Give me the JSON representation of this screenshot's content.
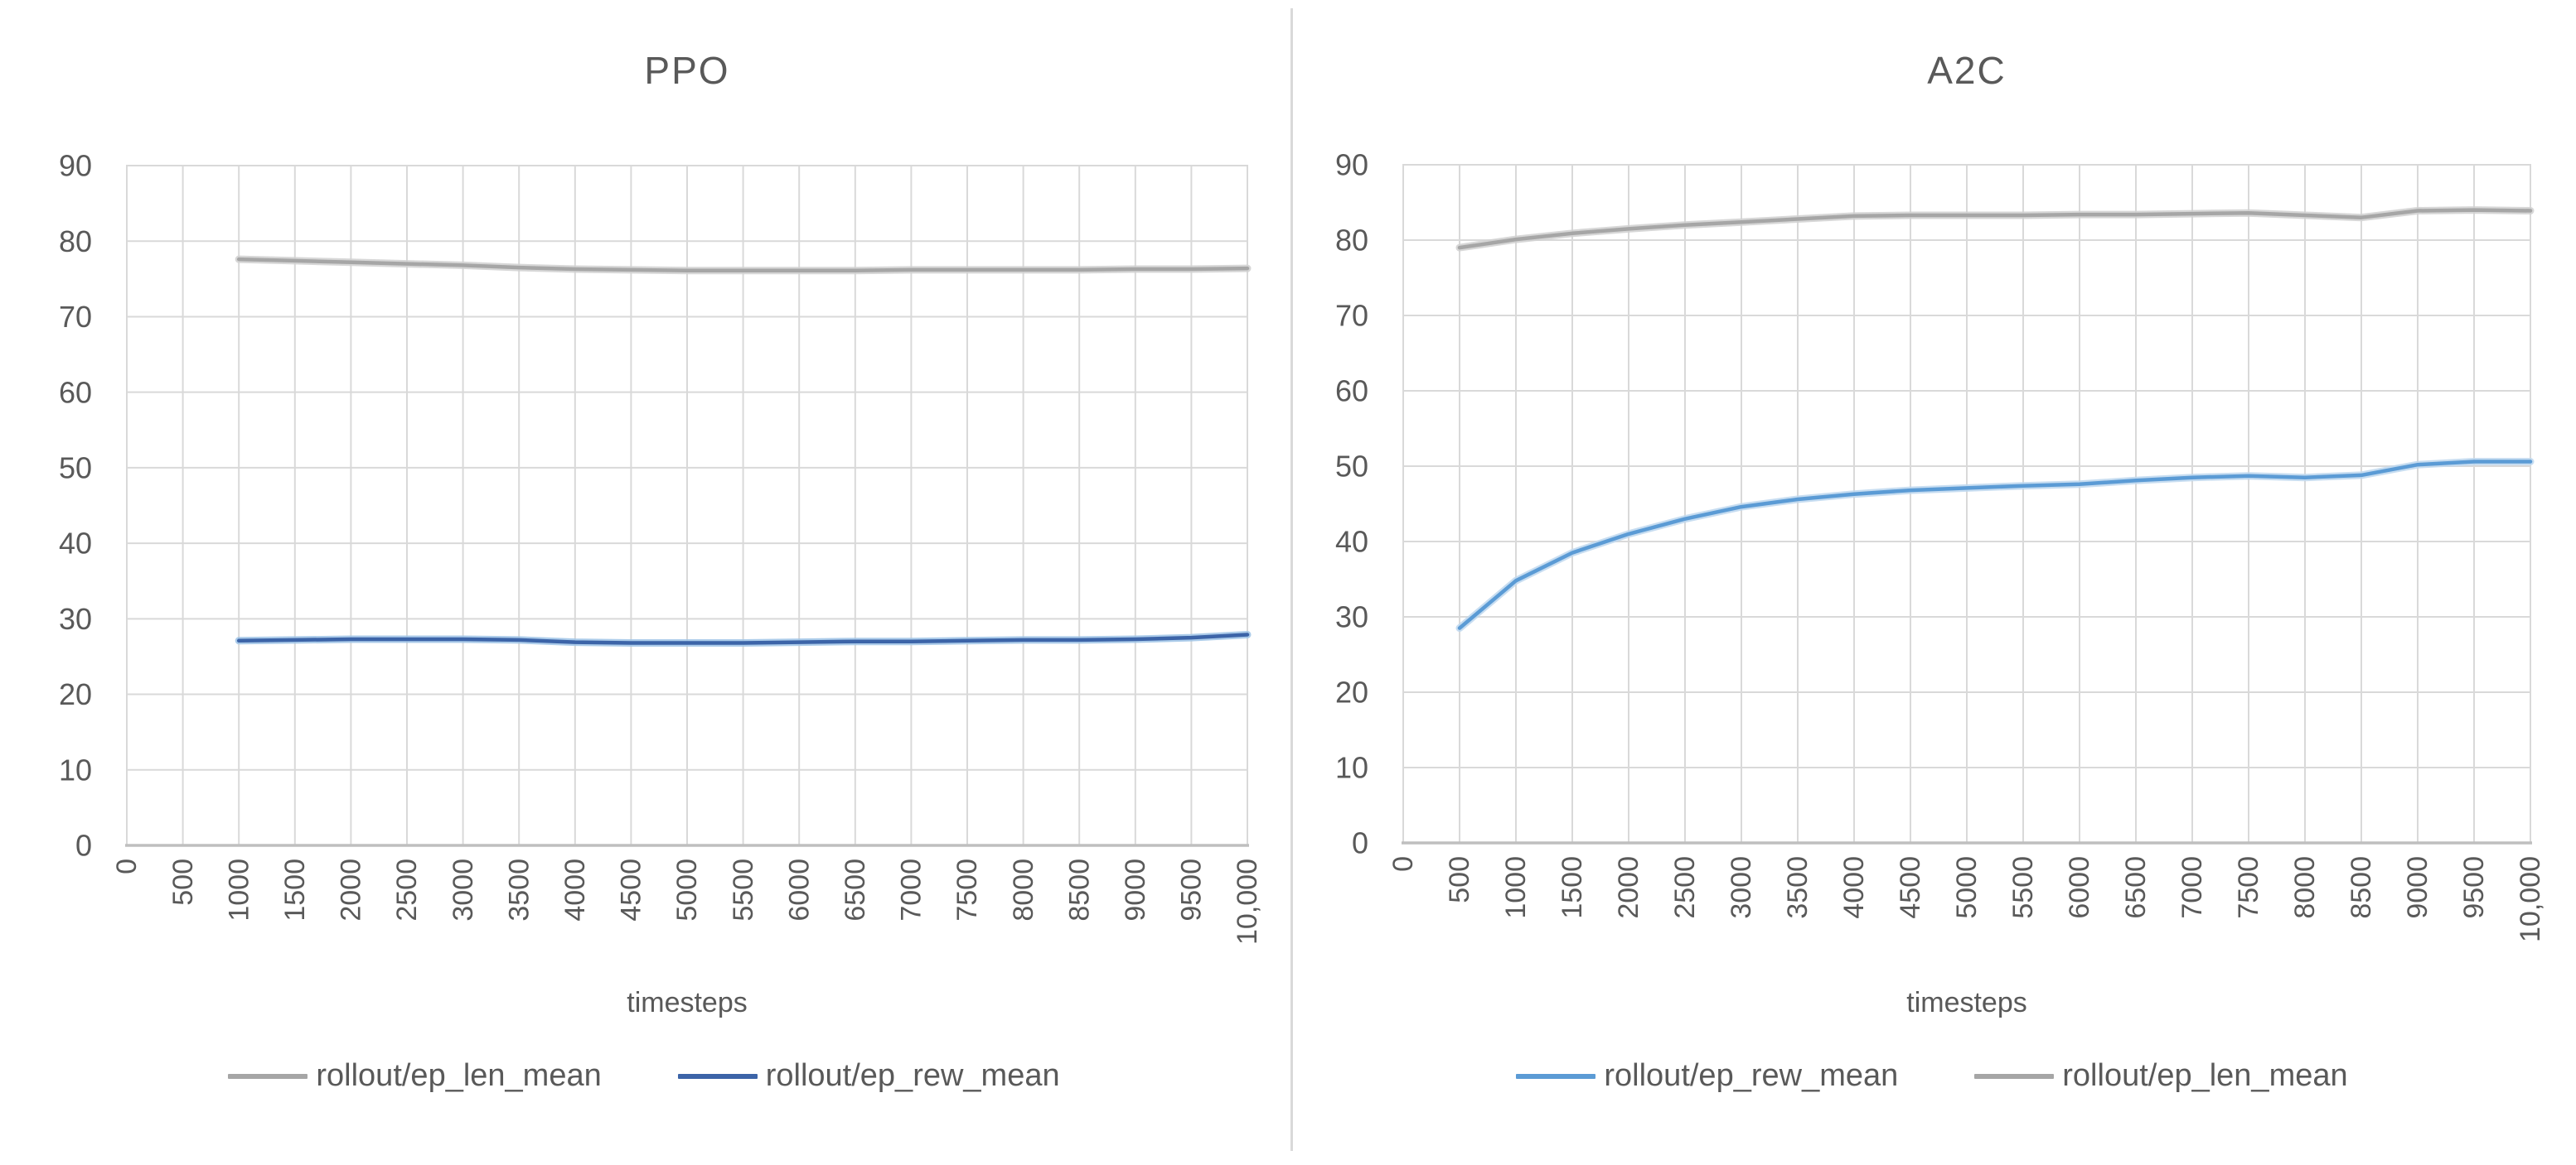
{
  "background": "#ffffff",
  "divider_color": "#d9d9d9",
  "palette": {
    "gridline": "#d9d9d9",
    "axis_line": "#bfbfbf",
    "label_text": "#595959",
    "title_text": "#595959"
  },
  "chart_data": [
    {
      "type": "line",
      "title": "PPO",
      "xlabel": "timesteps",
      "xlim": [
        0,
        10000
      ],
      "ylim": [
        0,
        90
      ],
      "y_tick_step": 10,
      "grid": true,
      "legend_position": "bottom",
      "x_tick_labels": [
        "0",
        "500",
        "1000",
        "1500",
        "2000",
        "2500",
        "3000",
        "3500",
        "4000",
        "4500",
        "5000",
        "5500",
        "6000",
        "6500",
        "7000",
        "7500",
        "8000",
        "8500",
        "9000",
        "9500",
        "10,000"
      ],
      "series": [
        {
          "name": "rollout/ep_len_mean",
          "color": "#a6a6a6",
          "halo": "#d0d0d0",
          "x": [
            1000,
            1500,
            2000,
            2500,
            3000,
            3500,
            4000,
            4500,
            5000,
            5500,
            6000,
            6500,
            7000,
            7500,
            8000,
            8500,
            9000,
            9500,
            10000
          ],
          "values": [
            77.6,
            77.4,
            77.2,
            77.0,
            76.8,
            76.5,
            76.3,
            76.2,
            76.1,
            76.1,
            76.1,
            76.1,
            76.2,
            76.2,
            76.2,
            76.2,
            76.3,
            76.3,
            76.4
          ]
        },
        {
          "name": "rollout/ep_rew_mean",
          "color": "#3c64a8",
          "halo": "#9dc3e6",
          "x": [
            1000,
            1500,
            2000,
            2500,
            3000,
            3500,
            4000,
            4500,
            5000,
            5500,
            6000,
            6500,
            7000,
            7500,
            8000,
            8500,
            9000,
            9500,
            10000
          ],
          "values": [
            27.1,
            27.2,
            27.3,
            27.3,
            27.3,
            27.2,
            26.9,
            26.8,
            26.8,
            26.8,
            26.9,
            27.0,
            27.0,
            27.1,
            27.2,
            27.2,
            27.3,
            27.5,
            27.9
          ]
        }
      ]
    },
    {
      "type": "line",
      "title": "A2C",
      "xlabel": "timesteps",
      "xlim": [
        0,
        10000
      ],
      "ylim": [
        0,
        90
      ],
      "y_tick_step": 10,
      "grid": true,
      "legend_position": "bottom",
      "x_tick_labels": [
        "0",
        "500",
        "1000",
        "1500",
        "2000",
        "2500",
        "3000",
        "3500",
        "4000",
        "4500",
        "5000",
        "5500",
        "6000",
        "6500",
        "7000",
        "7500",
        "8000",
        "8500",
        "9000",
        "9500",
        "10,000"
      ],
      "series": [
        {
          "name": "rollout/ep_rew_mean",
          "color": "#5b9bd5",
          "halo": "#bdd7ee",
          "x": [
            500,
            1000,
            1500,
            2000,
            2500,
            3000,
            3500,
            4000,
            4500,
            5000,
            5500,
            6000,
            6500,
            7000,
            7500,
            8000,
            8500,
            9000,
            9500,
            10000
          ],
          "values": [
            28.5,
            34.8,
            38.5,
            41.0,
            43.0,
            44.6,
            45.6,
            46.3,
            46.8,
            47.1,
            47.4,
            47.6,
            48.1,
            48.5,
            48.7,
            48.5,
            48.8,
            50.2,
            50.6,
            50.6
          ]
        },
        {
          "name": "rollout/ep_len_mean",
          "color": "#a6a6a6",
          "halo": "#d0d0d0",
          "x": [
            500,
            1000,
            1500,
            2000,
            2500,
            3000,
            3500,
            4000,
            4500,
            5000,
            5500,
            6000,
            6500,
            7000,
            7500,
            8000,
            8500,
            9000,
            9500,
            10000
          ],
          "values": [
            79.0,
            80.1,
            80.9,
            81.5,
            82.0,
            82.4,
            82.8,
            83.2,
            83.3,
            83.3,
            83.3,
            83.4,
            83.4,
            83.5,
            83.6,
            83.3,
            83.0,
            83.9,
            84.0,
            83.9
          ]
        }
      ]
    }
  ]
}
